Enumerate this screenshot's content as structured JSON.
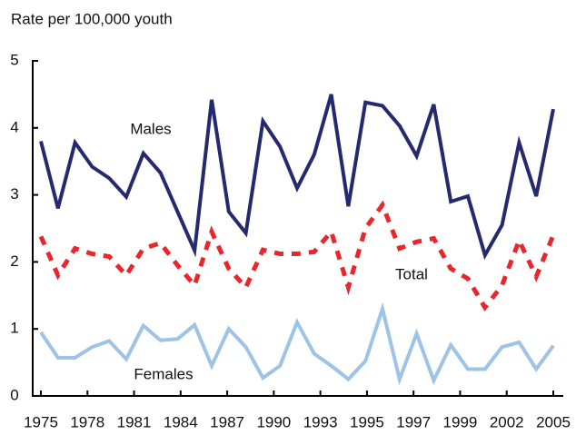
{
  "chart_data": {
    "type": "line",
    "ylabel": "Rate per 100,000 youth",
    "x": [
      1975,
      1976,
      1977,
      1978,
      1979,
      1980,
      1981,
      1982,
      1983,
      1984,
      1985,
      1986,
      1987,
      1988,
      1989,
      1990,
      1991,
      1992,
      1993,
      1994,
      1995,
      1996,
      1997,
      1998,
      1999,
      2000,
      2001,
      2002,
      2003,
      2004,
      2005
    ],
    "xlim": [
      1975,
      2005
    ],
    "xticks": [
      "1975",
      "1978",
      "1981",
      "1984",
      "1987",
      "1990",
      "1993",
      "1995",
      "1997",
      "1999",
      "2002",
      "2005"
    ],
    "ylim": [
      0,
      5
    ],
    "yticks": [
      0,
      1,
      2,
      3,
      4,
      5
    ],
    "series": [
      {
        "name": "Males",
        "color": "#252a6e",
        "dash": false,
        "values": [
          3.8,
          2.8,
          3.78,
          3.42,
          3.25,
          2.97,
          3.62,
          3.33,
          2.75,
          2.17,
          4.42,
          2.75,
          2.43,
          4.1,
          3.72,
          3.1,
          3.6,
          4.5,
          2.83,
          4.38,
          4.33,
          4.03,
          3.58,
          4.35,
          2.9,
          2.98,
          2.1,
          2.55,
          3.78,
          2.98,
          4.28
        ]
      },
      {
        "name": "Total",
        "color": "#e8262b",
        "dash": true,
        "values": [
          2.38,
          1.8,
          2.2,
          2.12,
          2.08,
          1.8,
          2.2,
          2.28,
          1.95,
          1.65,
          2.45,
          1.9,
          1.62,
          2.18,
          2.12,
          2.12,
          2.15,
          2.45,
          1.62,
          2.5,
          2.85,
          2.2,
          2.3,
          2.35,
          1.9,
          1.75,
          1.32,
          1.65,
          2.32,
          1.78,
          2.4
        ]
      },
      {
        "name": "Females",
        "color": "#9dc3e6",
        "dash": false,
        "values": [
          0.95,
          0.57,
          0.57,
          0.73,
          0.82,
          0.55,
          1.05,
          0.83,
          0.85,
          1.06,
          0.45,
          1.0,
          0.73,
          0.27,
          0.45,
          1.1,
          0.63,
          0.45,
          0.25,
          0.52,
          1.3,
          0.25,
          0.93,
          0.23,
          0.76,
          0.4,
          0.4,
          0.73,
          0.8,
          0.4,
          0.75
        ]
      }
    ]
  }
}
